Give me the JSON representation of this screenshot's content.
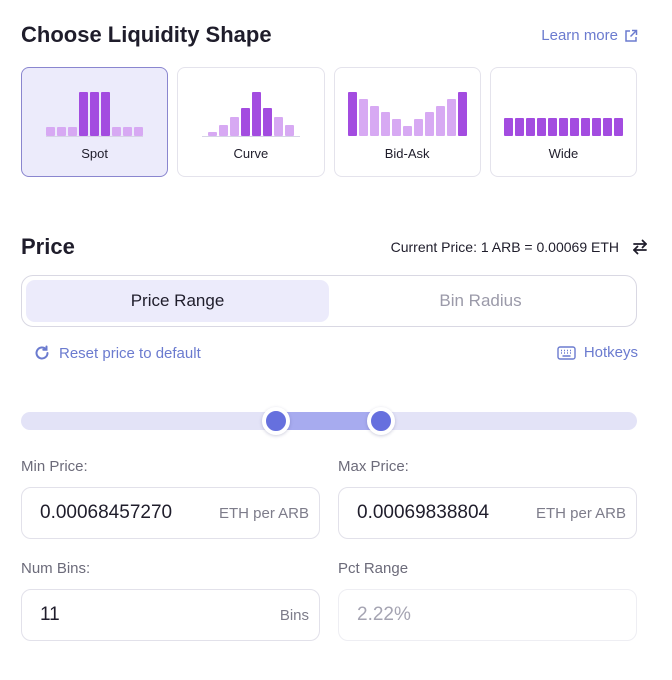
{
  "shape_section": {
    "title": "Choose Liquidity Shape",
    "learn_more": "Learn more",
    "options": [
      {
        "label": "Spot",
        "selected": true
      },
      {
        "label": "Curve",
        "selected": false
      },
      {
        "label": "Bid-Ask",
        "selected": false
      },
      {
        "label": "Wide",
        "selected": false
      }
    ]
  },
  "price_section": {
    "title": "Price",
    "current_price": "Current Price: 1 ARB = 0.00069 ETH",
    "tabs": [
      {
        "label": "Price Range",
        "active": true
      },
      {
        "label": "Bin Radius",
        "active": false
      }
    ],
    "reset_label": "Reset price to default",
    "hotkeys_label": "Hotkeys",
    "min_price": {
      "label": "Min Price:",
      "value": "0.00068457270",
      "unit": "ETH per ARB"
    },
    "max_price": {
      "label": "Max Price:",
      "value": "0.00069838804",
      "unit": "ETH per ARB"
    },
    "num_bins": {
      "label": "Num Bins:",
      "value": "11",
      "unit": "Bins"
    },
    "pct_range": {
      "label": "Pct Range",
      "value": "2.22%"
    }
  },
  "colors": {
    "accent": "#6b7bcf",
    "slider_thumb": "#6670de",
    "bar_dark": "#a34ce0",
    "bar_light": "#d7a9f3"
  }
}
